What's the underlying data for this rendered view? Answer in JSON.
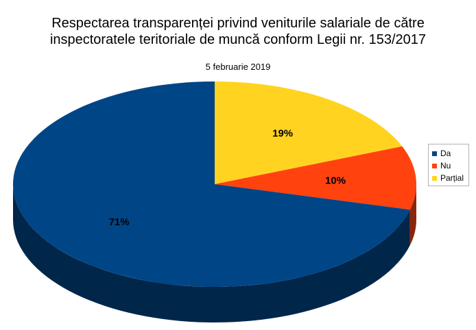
{
  "chart_data": {
    "type": "pie",
    "title": "Respectarea transparenței privind veniturile salariale de către\ninspectoratele teritoriale de muncă conform Legii nr. 153/2017",
    "subtitle": "5 februarie 2019",
    "slices": [
      {
        "label": "Da",
        "value": 71,
        "data_label": "71%",
        "color": "#004586"
      },
      {
        "label": "Nu",
        "value": 10,
        "data_label": "10%",
        "color": "#ff420e"
      },
      {
        "label": "Parțial",
        "value": 19,
        "data_label": "19%",
        "color": "#ffd320"
      }
    ],
    "legend_position": "right",
    "style": "3d"
  }
}
